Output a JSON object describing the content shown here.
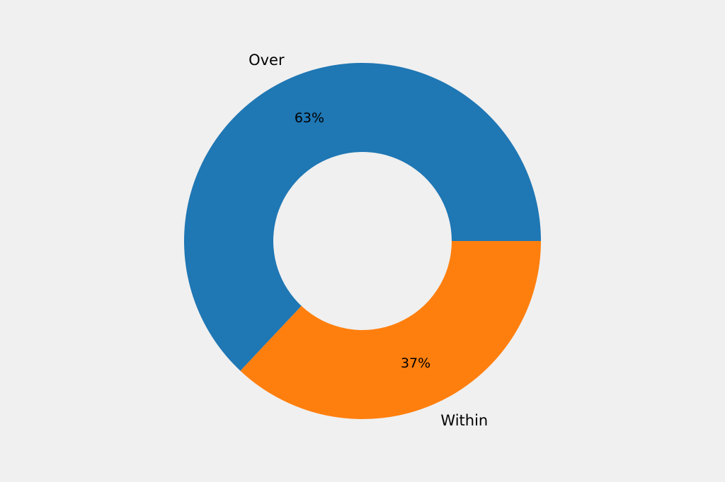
{
  "chart_data": {
    "type": "pie",
    "donut": true,
    "title": "",
    "start_angle_deg": 0,
    "direction": "counterclockwise",
    "slices": [
      {
        "label": "Over",
        "value": 63,
        "percent_label": "63%",
        "color": "#1f77b4"
      },
      {
        "label": "Within",
        "value": 37,
        "percent_label": "37%",
        "color": "#ff7f0e"
      }
    ]
  },
  "colors": {
    "background": "#f0f0f0"
  }
}
